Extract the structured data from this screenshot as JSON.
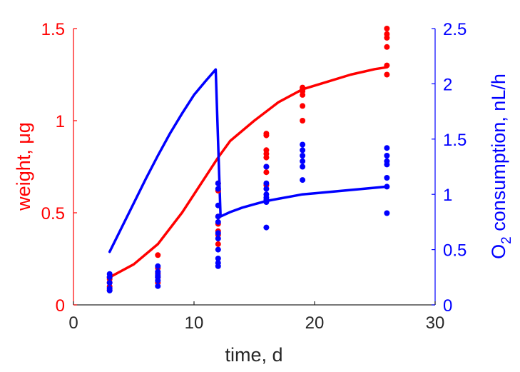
{
  "chart_data": {
    "type": "scatter",
    "xlabel": "time, d",
    "ylabel_left": "weight, μg",
    "ylabel_right_main": "O",
    "ylabel_right_sub": "2",
    "ylabel_right_rest": " consumption, nL/h",
    "xlim": [
      0,
      30
    ],
    "ylim_left": [
      0,
      1.5
    ],
    "ylim_right": [
      0,
      2.5
    ],
    "xticks": [
      "0",
      "10",
      "20",
      "30"
    ],
    "yticks_left": [
      "0",
      "0.5",
      "1",
      "1.5"
    ],
    "yticks_right": [
      "0",
      "0.5",
      "1",
      "1.5",
      "2",
      "2.5"
    ],
    "grid": false,
    "colors": {
      "left_axis": "#ff0000",
      "right_axis": "#0000ff",
      "x_axis": "#262626"
    },
    "series": [
      {
        "kind": "scatter",
        "axis": "left",
        "color": "#ff0000",
        "points": [
          [
            3,
            0.08
          ],
          [
            3,
            0.1
          ],
          [
            3,
            0.12
          ],
          [
            3,
            0.14
          ],
          [
            3,
            0.15
          ],
          [
            7,
            0.12
          ],
          [
            7,
            0.15
          ],
          [
            7,
            0.17
          ],
          [
            7,
            0.2
          ],
          [
            7,
            0.27
          ],
          [
            12,
            0.33
          ],
          [
            12,
            0.38
          ],
          [
            12,
            0.4
          ],
          [
            12,
            0.44
          ],
          [
            12,
            0.48
          ],
          [
            12,
            0.62
          ],
          [
            12,
            0.66
          ],
          [
            16,
            0.65
          ],
          [
            16,
            0.72
          ],
          [
            16,
            0.75
          ],
          [
            16,
            0.8
          ],
          [
            16,
            0.82
          ],
          [
            16,
            0.84
          ],
          [
            16,
            0.92
          ],
          [
            16,
            0.93
          ],
          [
            19,
            1.0
          ],
          [
            19,
            1.08
          ],
          [
            19,
            1.14
          ],
          [
            19,
            1.16
          ],
          [
            19,
            1.17
          ],
          [
            19,
            1.18
          ],
          [
            26,
            1.25
          ],
          [
            26,
            1.3
          ],
          [
            26,
            1.4
          ],
          [
            26,
            1.45
          ],
          [
            26,
            1.47
          ],
          [
            26,
            1.5
          ]
        ]
      },
      {
        "kind": "scatter",
        "axis": "right",
        "color": "#0000ff",
        "points": [
          [
            3,
            0.13
          ],
          [
            3,
            0.15
          ],
          [
            3,
            0.2
          ],
          [
            3,
            0.25
          ],
          [
            3,
            0.28
          ],
          [
            7,
            0.17
          ],
          [
            7,
            0.22
          ],
          [
            7,
            0.25
          ],
          [
            7,
            0.27
          ],
          [
            7,
            0.3
          ],
          [
            7,
            0.35
          ],
          [
            12,
            0.35
          ],
          [
            12,
            0.38
          ],
          [
            12,
            0.42
          ],
          [
            12,
            0.5
          ],
          [
            12,
            0.6
          ],
          [
            12,
            0.65
          ],
          [
            12,
            0.75
          ],
          [
            12,
            0.8
          ],
          [
            12,
            0.9
          ],
          [
            12,
            1.05
          ],
          [
            12,
            1.1
          ],
          [
            16,
            0.7
          ],
          [
            16,
            0.93
          ],
          [
            16,
            0.95
          ],
          [
            16,
            0.97
          ],
          [
            16,
            1.0
          ],
          [
            16,
            1.05
          ],
          [
            16,
            1.1
          ],
          [
            16,
            1.25
          ],
          [
            19,
            1.13
          ],
          [
            19,
            1.25
          ],
          [
            19,
            1.3
          ],
          [
            19,
            1.35
          ],
          [
            19,
            1.4
          ],
          [
            19,
            1.45
          ],
          [
            26,
            0.83
          ],
          [
            26,
            1.07
          ],
          [
            26,
            1.15
          ],
          [
            26,
            1.27
          ],
          [
            26,
            1.3
          ],
          [
            26,
            1.35
          ],
          [
            26,
            1.42
          ]
        ]
      },
      {
        "kind": "line",
        "axis": "left",
        "color": "#ff0000",
        "points": [
          [
            3,
            0.15
          ],
          [
            5,
            0.22
          ],
          [
            7,
            0.33
          ],
          [
            9,
            0.5
          ],
          [
            11,
            0.7
          ],
          [
            12,
            0.8
          ],
          [
            13,
            0.89
          ],
          [
            15,
            1.0
          ],
          [
            17,
            1.1
          ],
          [
            19,
            1.17
          ],
          [
            21,
            1.21
          ],
          [
            23,
            1.25
          ],
          [
            25,
            1.28
          ],
          [
            26,
            1.29
          ]
        ]
      },
      {
        "kind": "line",
        "axis": "right",
        "color": "#0000ff",
        "points": [
          [
            3,
            0.48
          ],
          [
            4,
            0.7
          ],
          [
            5,
            0.92
          ],
          [
            6,
            1.14
          ],
          [
            7,
            1.35
          ],
          [
            8,
            1.55
          ],
          [
            9,
            1.73
          ],
          [
            10,
            1.9
          ],
          [
            11,
            2.03
          ],
          [
            11.8,
            2.13
          ],
          [
            12.2,
            0.8
          ],
          [
            13,
            0.84
          ],
          [
            14,
            0.88
          ],
          [
            15,
            0.91
          ],
          [
            16,
            0.94
          ],
          [
            17,
            0.96
          ],
          [
            18,
            0.98
          ],
          [
            19,
            1.0
          ],
          [
            20,
            1.01
          ],
          [
            22,
            1.03
          ],
          [
            24,
            1.05
          ],
          [
            26,
            1.07
          ]
        ]
      }
    ]
  }
}
